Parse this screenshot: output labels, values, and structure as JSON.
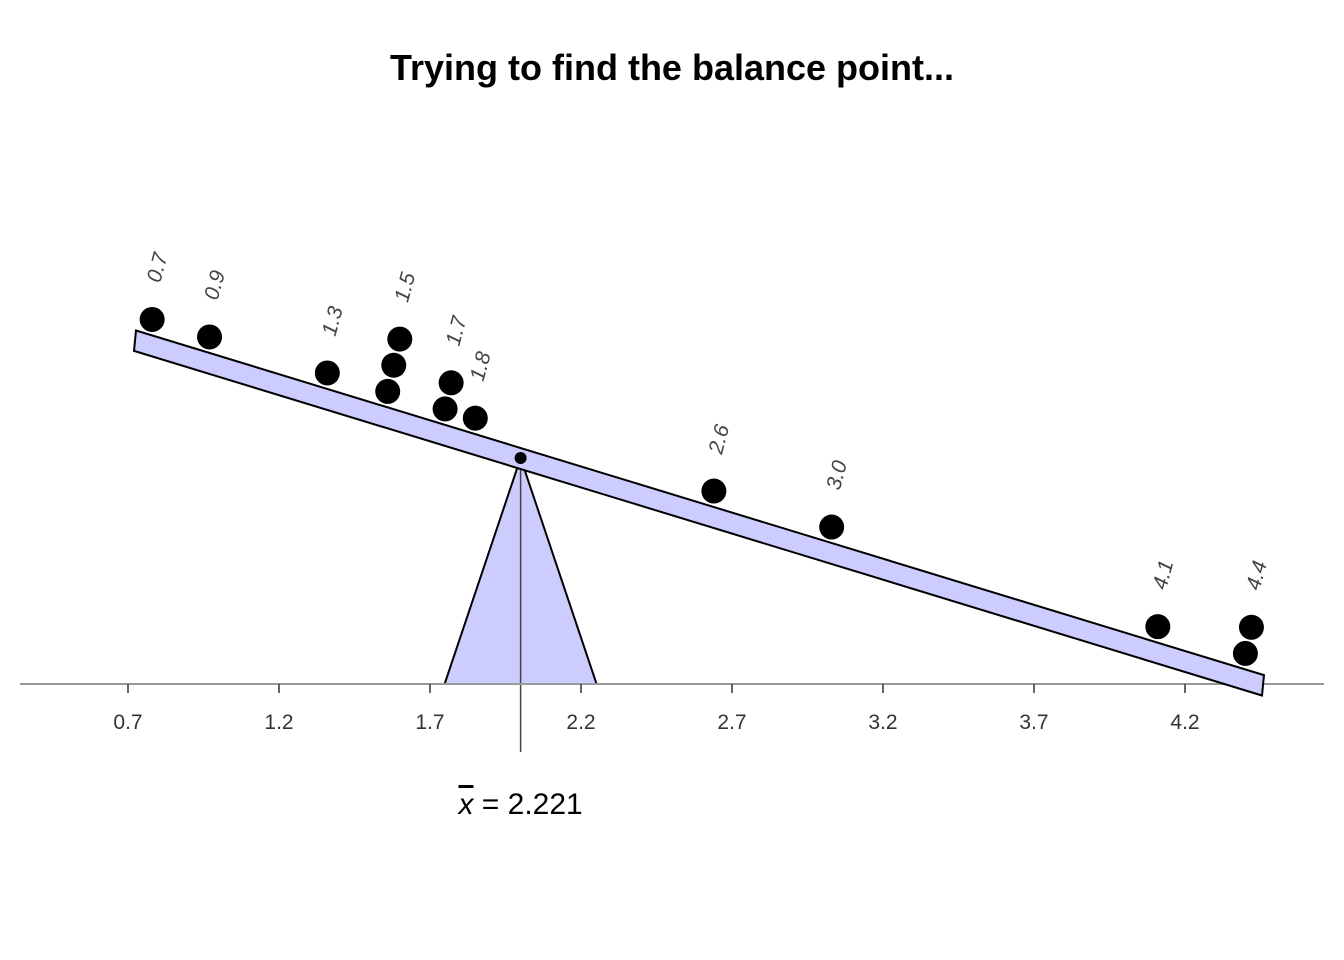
{
  "chart_data": {
    "type": "scatter",
    "title": "Trying to find the balance point...",
    "xlabel": "",
    "ylabel": "",
    "xlim": [
      0.35,
      4.65
    ],
    "x_ticks": [
      0.7,
      1.2,
      1.7,
      2.2,
      2.7,
      3.2,
      3.7,
      4.2
    ],
    "x_tick_labels": [
      "0.7",
      "1.2",
      "1.7",
      "2.2",
      "2.7",
      "3.2",
      "3.7",
      "4.2"
    ],
    "balance_point": 2.0,
    "mean_symbol": "x",
    "mean_label": " = 2.221",
    "points": [
      {
        "x": 0.78,
        "stack": 0,
        "label": "0.7"
      },
      {
        "x": 0.97,
        "stack": 0,
        "label": "0.9"
      },
      {
        "x": 1.36,
        "stack": 0,
        "label": "1.3"
      },
      {
        "x": 1.56,
        "stack": 0,
        "label": ""
      },
      {
        "x": 1.58,
        "stack": 1,
        "label": ""
      },
      {
        "x": 1.6,
        "stack": 2,
        "label": "1.5"
      },
      {
        "x": 1.75,
        "stack": 0,
        "label": ""
      },
      {
        "x": 1.77,
        "stack": 1,
        "label": "1.7"
      },
      {
        "x": 1.85,
        "stack": 0,
        "label": "1.8"
      },
      {
        "x": 2.64,
        "stack": 0,
        "label": "2.6"
      },
      {
        "x": 3.03,
        "stack": 0,
        "label": "3.0"
      },
      {
        "x": 4.11,
        "stack": 0,
        "label": "4.1"
      },
      {
        "x": 4.4,
        "stack": 0,
        "label": ""
      },
      {
        "x": 4.42,
        "stack": 1,
        "label": "4.4"
      }
    ],
    "colors": {
      "beam_fill": "#ccccff",
      "fulcrum_fill": "#ccccff",
      "outline": "#000000",
      "axis": "#999999",
      "point": "#000000"
    },
    "grid": false,
    "legend": "none"
  }
}
